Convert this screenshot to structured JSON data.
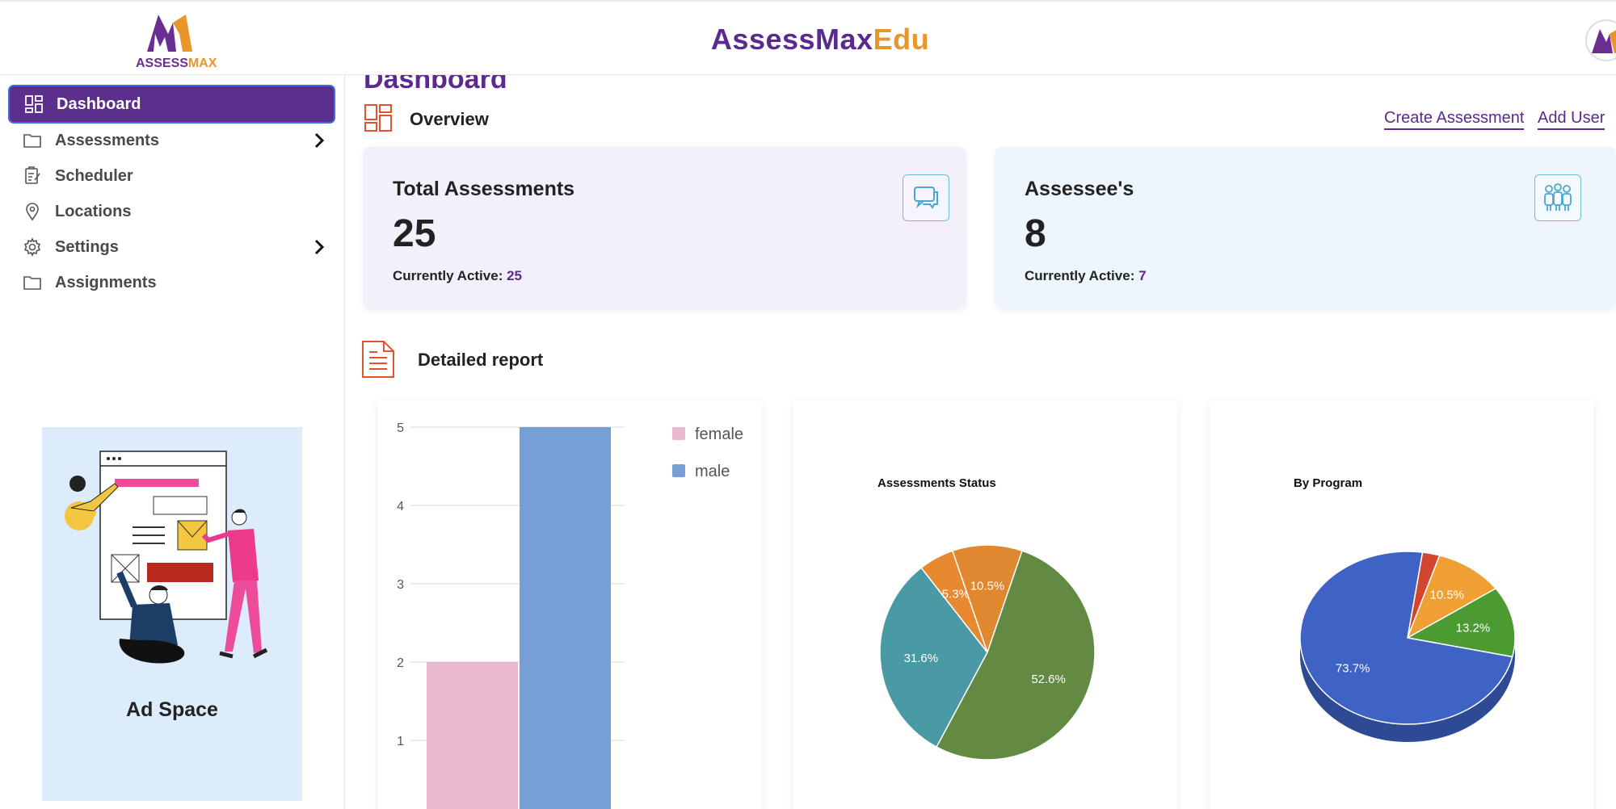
{
  "header": {
    "logo_part1": "ASSESS",
    "logo_part2": "MAX",
    "brand_part1": "AssessMax",
    "brand_part2": "Edu"
  },
  "sidebar": {
    "items": [
      {
        "label": "Dashboard",
        "icon": "dashboard-icon",
        "active": true
      },
      {
        "label": "Assessments",
        "icon": "folder-icon",
        "has_submenu": true
      },
      {
        "label": "Scheduler",
        "icon": "clipboard-icon"
      },
      {
        "label": "Locations",
        "icon": "location-pin-icon"
      },
      {
        "label": "Settings",
        "icon": "gear-icon",
        "has_submenu": true
      },
      {
        "label": "Assignments",
        "icon": "folder-icon"
      }
    ],
    "ad_label": "Ad Space"
  },
  "main": {
    "page_title": "Dashboard",
    "overview_title": "Overview",
    "links": {
      "create_assessment": "Create Assessment",
      "add_user": "Add User"
    },
    "cards": [
      {
        "title": "Total Assessments",
        "value": "25",
        "sub_label": "Currently Active:",
        "sub_value": "25",
        "icon": "chat-bubbles-icon",
        "bg": "#f3f0fb"
      },
      {
        "title": "Assessee's",
        "value": "8",
        "sub_label": "Currently Active:",
        "sub_value": "7",
        "icon": "people-group-icon",
        "bg": "#eef6fd"
      }
    ],
    "report_title": "Detailed report"
  },
  "chart_data": [
    {
      "type": "bar",
      "title": "",
      "categories": [
        ""
      ],
      "series": [
        {
          "name": "female",
          "values": [
            2
          ],
          "color": "#e8b8cf"
        },
        {
          "name": "male",
          "values": [
            5
          ],
          "color": "#769fd6"
        }
      ],
      "y_ticks": [
        1,
        2,
        3,
        4,
        5
      ],
      "ylim": [
        0,
        5
      ],
      "legend": "right"
    },
    {
      "type": "pie",
      "title": "Assessments Status",
      "slices": [
        {
          "value": 31.6,
          "label": "31.6%",
          "color": "#4a9aa5"
        },
        {
          "value": 5.3,
          "label": "5.3%",
          "color": "#e8892f"
        },
        {
          "value": 10.5,
          "label": "10.5%",
          "color": "#e0882f"
        },
        {
          "value": 52.6,
          "label": "52.6%",
          "color": "#628a42"
        }
      ]
    },
    {
      "type": "pie",
      "title": "By Program",
      "slices": [
        {
          "value": 2.6,
          "label": "",
          "color": "#d2462f"
        },
        {
          "value": 10.5,
          "label": "10.5%",
          "color": "#f0a032"
        },
        {
          "value": 13.2,
          "label": "13.2%",
          "color": "#4c9a32"
        },
        {
          "value": 73.7,
          "label": "73.7%",
          "color": "#3f63c4"
        }
      ]
    }
  ]
}
